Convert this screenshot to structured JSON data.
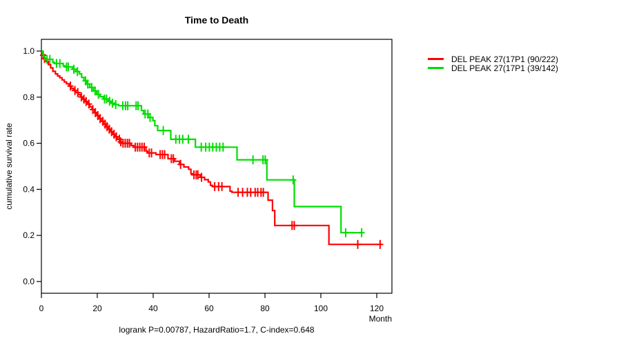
{
  "title": "Time to Death",
  "axes": {
    "x": {
      "label": "Month",
      "ticks": [
        "0",
        "20",
        "40",
        "60",
        "80",
        "100",
        "120"
      ]
    },
    "y": {
      "label": "cumulative survival rate",
      "ticks": [
        "0.0",
        "0.2",
        "0.4",
        "0.6",
        "0.8",
        "1.0"
      ]
    }
  },
  "legend": [
    {
      "label": "DEL PEAK 27(17P1 (90/222)",
      "color": "#ff0000"
    },
    {
      "label": "DEL PEAK 27(17P1 (39/142)",
      "color": "#00dd00"
    }
  ],
  "footer": "logrank P=0.00787, HazardRatio=1.7, C-index=0.648",
  "chart_data": {
    "type": "line",
    "subtype": "kaplan-meier-step",
    "title": "Time to Death",
    "xlabel": "Month",
    "ylabel": "cumulative survival rate",
    "xlim": [
      0,
      125
    ],
    "ylim": [
      0,
      1.05
    ],
    "x_ticks": [
      0,
      20,
      40,
      60,
      80,
      100,
      120
    ],
    "y_ticks": [
      0.0,
      0.2,
      0.4,
      0.6,
      0.8,
      1.0
    ],
    "grid": false,
    "legend_position": "top-right-outside",
    "annotation": "logrank P=0.00787, HazardRatio=1.7, C-index=0.648",
    "series": [
      {
        "name": "DEL PEAK 27(17P1 (90/222)",
        "color": "#ff0000",
        "events": "90/222",
        "end_time": 121.7,
        "steps": [
          [
            0,
            1.0
          ],
          [
            0.5,
            0.982
          ],
          [
            1.0,
            0.968
          ],
          [
            1.7,
            0.955
          ],
          [
            2.5,
            0.941
          ],
          [
            3.3,
            0.927
          ],
          [
            4.1,
            0.912
          ],
          [
            5.0,
            0.901
          ],
          [
            5.8,
            0.892
          ],
          [
            6.6,
            0.884
          ],
          [
            7.4,
            0.875
          ],
          [
            8.2,
            0.866
          ],
          [
            9.0,
            0.858
          ],
          [
            9.9,
            0.848
          ],
          [
            10.7,
            0.838
          ],
          [
            11.5,
            0.829
          ],
          [
            12.3,
            0.82
          ],
          [
            13.2,
            0.811
          ],
          [
            14.0,
            0.801
          ],
          [
            14.8,
            0.791
          ],
          [
            15.6,
            0.781
          ],
          [
            16.5,
            0.77
          ],
          [
            17.3,
            0.758
          ],
          [
            18.1,
            0.746
          ],
          [
            19.0,
            0.733
          ],
          [
            19.8,
            0.72
          ],
          [
            20.6,
            0.707
          ],
          [
            21.4,
            0.695
          ],
          [
            22.2,
            0.683
          ],
          [
            23.1,
            0.672
          ],
          [
            23.9,
            0.661
          ],
          [
            24.7,
            0.65
          ],
          [
            25.5,
            0.639
          ],
          [
            26.4,
            0.628
          ],
          [
            27.2,
            0.617
          ],
          [
            28.0,
            0.606
          ],
          [
            28.8,
            0.6
          ],
          [
            32.1,
            0.59
          ],
          [
            33.0,
            0.583
          ],
          [
            37.4,
            0.566
          ],
          [
            38.0,
            0.558
          ],
          [
            41.0,
            0.551
          ],
          [
            45.3,
            0.533
          ],
          [
            47.7,
            0.522
          ],
          [
            49.4,
            0.508
          ],
          [
            51.0,
            0.497
          ],
          [
            52.7,
            0.487
          ],
          [
            53.5,
            0.468
          ],
          [
            54.2,
            0.463
          ],
          [
            56.8,
            0.452
          ],
          [
            58.4,
            0.442
          ],
          [
            59.7,
            0.432
          ],
          [
            60.5,
            0.417
          ],
          [
            61.2,
            0.412
          ],
          [
            67.5,
            0.392
          ],
          [
            68.2,
            0.387
          ],
          [
            81.1,
            0.353
          ],
          [
            82.7,
            0.308
          ],
          [
            83.5,
            0.243
          ],
          [
            102.9,
            0.161
          ]
        ],
        "censor_times": [
          0.6,
          1.1,
          10.4,
          12.0,
          13.0,
          14.3,
          15.2,
          16.0,
          17.0,
          18.4,
          19.3,
          20.2,
          21.0,
          22.0,
          22.8,
          23.5,
          24.3,
          25.1,
          26.0,
          26.8,
          27.9,
          28.4,
          29.2,
          30.0,
          30.8,
          31.5,
          33.6,
          34.4,
          35.2,
          36.0,
          36.8,
          38.6,
          39.4,
          42.5,
          43.3,
          44.1,
          46.5,
          47.2,
          49.8,
          54.6,
          55.4,
          56.0,
          57.3,
          62.0,
          63.4,
          64.6,
          70.4,
          72.0,
          73.7,
          74.9,
          76.5,
          77.4,
          78.6,
          79.4,
          89.7,
          90.5,
          113.2,
          121.2
        ]
      },
      {
        "name": "DEL PEAK 27(17P1 (39/142)",
        "color": "#00dd00",
        "events": "39/142",
        "end_time": 114.8,
        "steps": [
          [
            0,
            1.0
          ],
          [
            0.4,
            0.986
          ],
          [
            0.8,
            0.976
          ],
          [
            1.2,
            0.964
          ],
          [
            4.1,
            0.951
          ],
          [
            4.7,
            0.946
          ],
          [
            7.8,
            0.936
          ],
          [
            8.4,
            0.931
          ],
          [
            11.1,
            0.921
          ],
          [
            12.3,
            0.911
          ],
          [
            13.6,
            0.901
          ],
          [
            14.4,
            0.886
          ],
          [
            15.2,
            0.871
          ],
          [
            16.2,
            0.857
          ],
          [
            17.3,
            0.842
          ],
          [
            18.6,
            0.827
          ],
          [
            19.8,
            0.812
          ],
          [
            21.0,
            0.802
          ],
          [
            22.2,
            0.792
          ],
          [
            24.0,
            0.782
          ],
          [
            24.9,
            0.774
          ],
          [
            26.3,
            0.768
          ],
          [
            27.6,
            0.763
          ],
          [
            35.8,
            0.742
          ],
          [
            36.6,
            0.727
          ],
          [
            38.2,
            0.712
          ],
          [
            39.9,
            0.698
          ],
          [
            40.6,
            0.676
          ],
          [
            41.6,
            0.655
          ],
          [
            46.3,
            0.617
          ],
          [
            55.1,
            0.583
          ],
          [
            70.0,
            0.528
          ],
          [
            80.7,
            0.441
          ],
          [
            90.5,
            0.325
          ],
          [
            107.2,
            0.212
          ]
        ],
        "censor_times": [
          2.0,
          3.0,
          5.4,
          6.6,
          9.0,
          9.6,
          11.6,
          12.9,
          15.8,
          16.6,
          18.0,
          19.2,
          20.4,
          22.6,
          23.3,
          24.4,
          25.4,
          26.6,
          29.1,
          30.1,
          30.9,
          33.9,
          34.6,
          37.1,
          38.1,
          38.9,
          43.6,
          48.1,
          49.4,
          50.6,
          52.6,
          57.2,
          58.8,
          60.1,
          61.3,
          62.6,
          63.8,
          65.0,
          75.7,
          79.3,
          80.1,
          90.1,
          108.9,
          114.6
        ]
      }
    ]
  }
}
